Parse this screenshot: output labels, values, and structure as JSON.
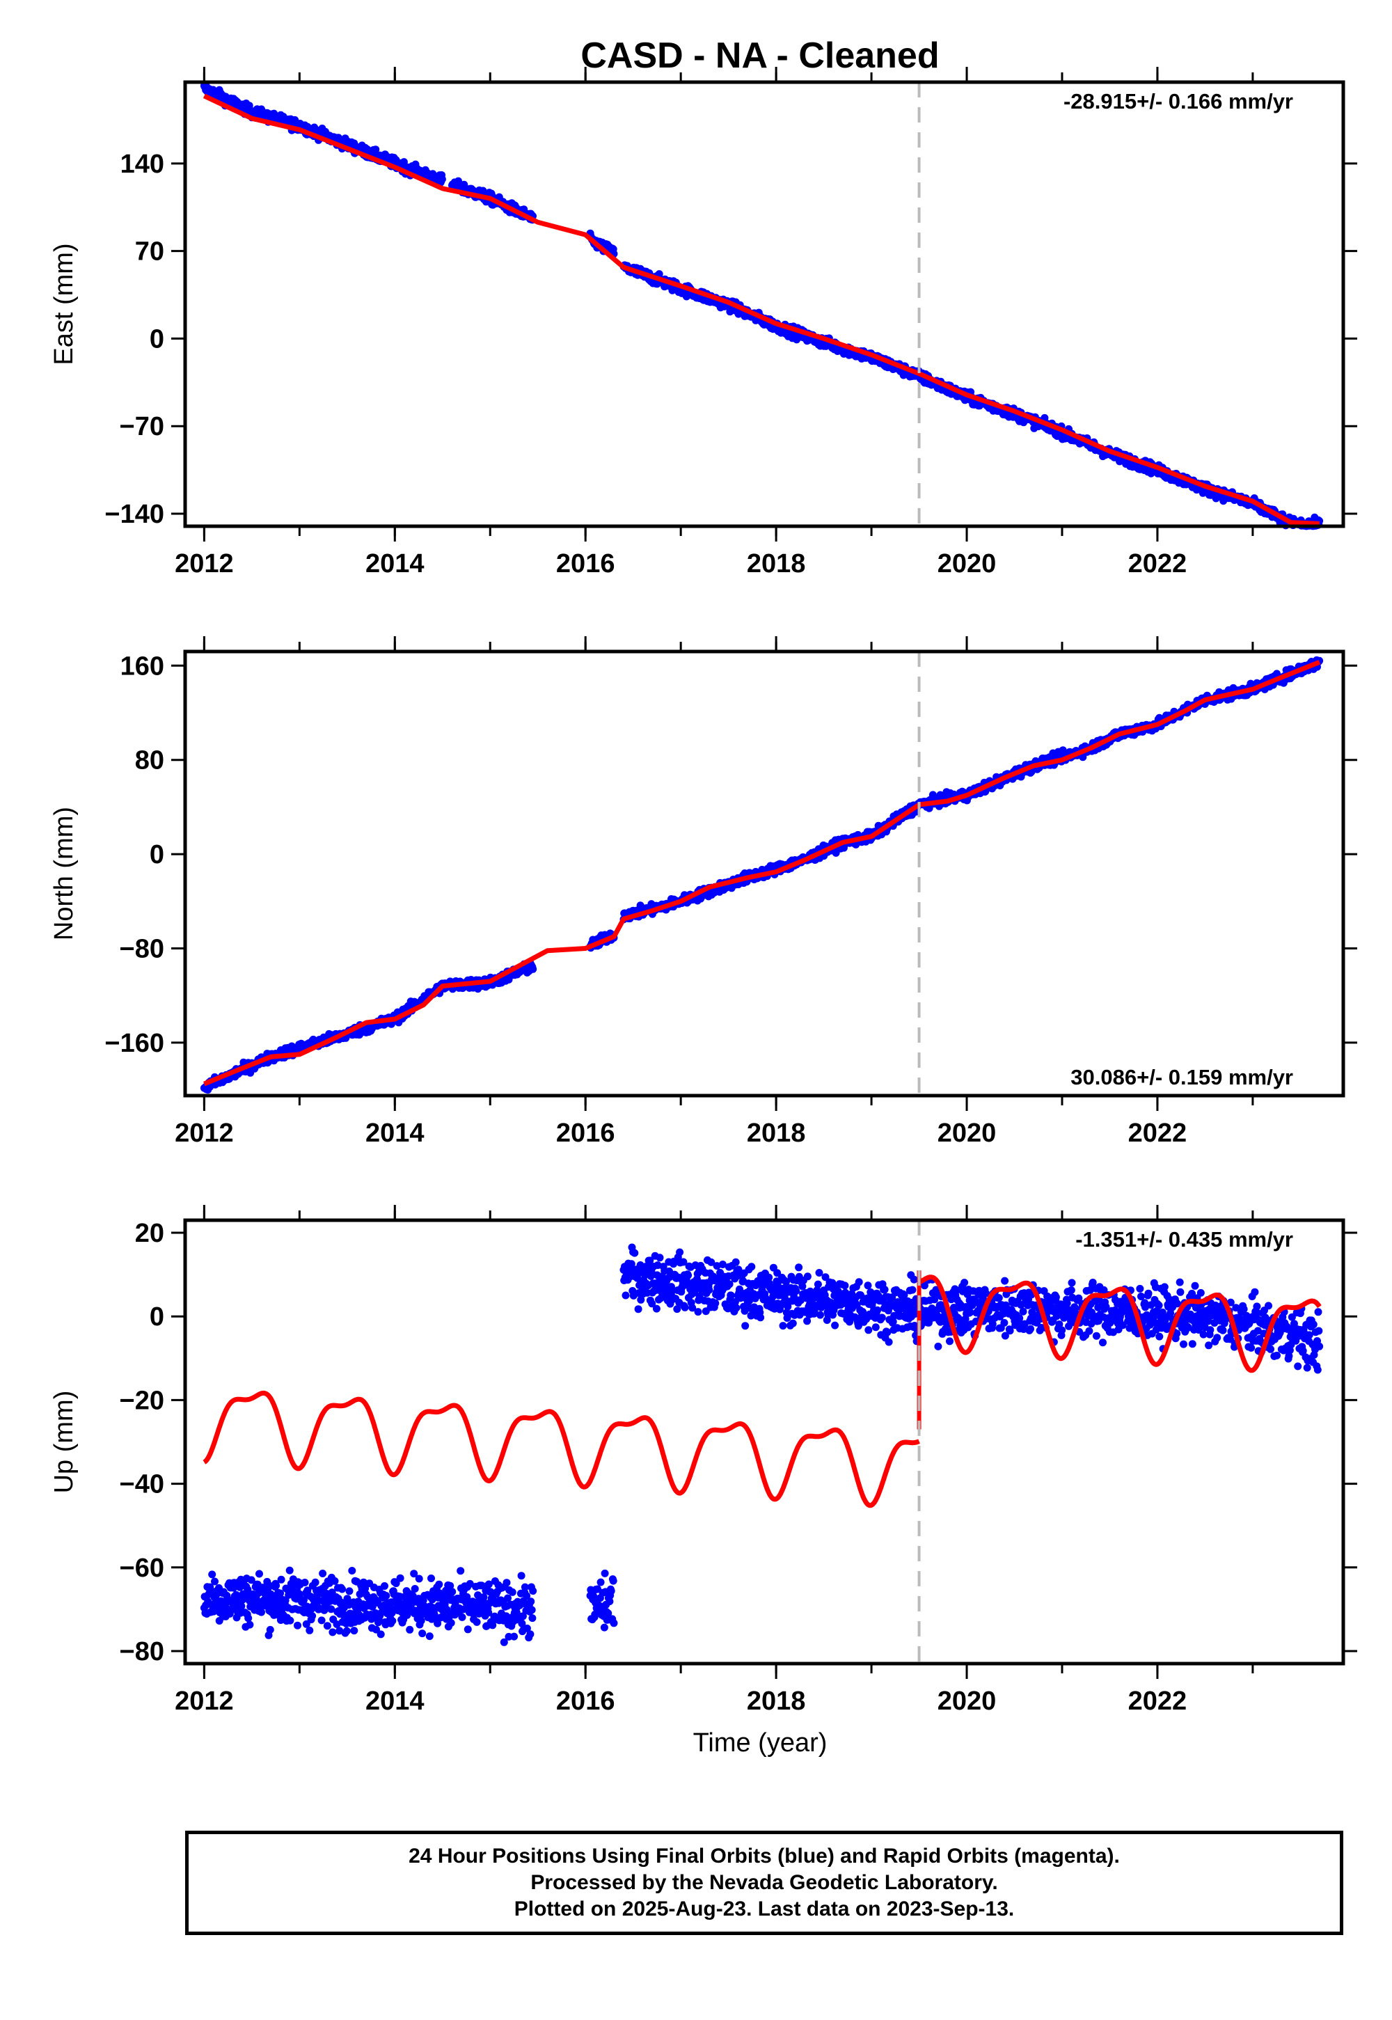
{
  "title": "CASD  - NA - Cleaned",
  "colors": {
    "data": "#0000ff",
    "model": "#ff0000",
    "event_line": "#bbbbbb",
    "axes": "#000000"
  },
  "chart_data": [
    {
      "type": "scatter",
      "panel": "east",
      "ylabel": "East (mm)",
      "xlabel": "",
      "xlim": [
        2011.8,
        2023.95
      ],
      "ylim": [
        -150,
        205
      ],
      "xticks": [
        2012,
        2014,
        2016,
        2018,
        2020,
        2022
      ],
      "yticks": [
        -140,
        -70,
        0,
        70,
        140
      ],
      "rate": "-28.915+/- 0.166 mm/yr",
      "rate_position": "top-right",
      "event_line_x": 2019.5,
      "model_segments": [
        {
          "x": [
            2012.0,
            2012.5,
            2013.0,
            2013.5,
            2014.0,
            2014.5,
            2015.0,
            2015.5,
            2016.0,
            2016.4,
            2017.0,
            2017.5,
            2018.0,
            2018.5,
            2019.0,
            2019.5,
            2020.0,
            2020.5,
            2021.0,
            2021.5,
            2022.0,
            2022.5,
            2023.0,
            2023.4,
            2023.7
          ],
          "y": [
            194,
            176,
            167,
            152,
            137,
            120,
            112,
            93,
            83,
            57,
            42,
            29,
            12,
            0,
            -13,
            -28,
            -45,
            -58,
            -73,
            -90,
            -103,
            -118,
            -130,
            -147,
            -148
          ]
        }
      ],
      "data_segments": [
        {
          "x": [
            2012.0,
            2012.5,
            2013.0,
            2013.5,
            2014.0,
            2014.5
          ],
          "y": [
            200,
            181,
            170,
            155,
            140,
            126
          ]
        },
        {
          "x": [
            2014.6,
            2015.0,
            2015.45
          ],
          "y": [
            123,
            112,
            96
          ]
        },
        {
          "x": [
            2016.05,
            2016.3
          ],
          "y": [
            79,
            68
          ]
        },
        {
          "x": [
            2016.4,
            2017.0,
            2017.5,
            2018.0,
            2018.5,
            2019.0,
            2019.5,
            2020.0,
            2020.5,
            2021.0,
            2021.5,
            2022.0,
            2022.5,
            2023.0,
            2023.4,
            2023.7
          ],
          "y": [
            57,
            40,
            27,
            10,
            -3,
            -15,
            -30,
            -47,
            -60,
            -75,
            -92,
            -105,
            -120,
            -132,
            -148,
            -149
          ]
        }
      ],
      "noise": 3
    },
    {
      "type": "scatter",
      "panel": "north",
      "ylabel": "North (mm)",
      "xlabel": "",
      "xlim": [
        2011.8,
        2023.95
      ],
      "ylim": [
        -205,
        172
      ],
      "xticks": [
        2012,
        2014,
        2016,
        2018,
        2020,
        2022
      ],
      "yticks": [
        -160,
        -80,
        0,
        80,
        160
      ],
      "rate": "30.086+/- 0.159 mm/yr",
      "rate_position": "bottom-right",
      "event_line_x": 2019.5,
      "model_segments": [
        {
          "x": [
            2012.0,
            2012.3,
            2012.7,
            2013.0,
            2013.4,
            2013.7,
            2014.0,
            2014.3,
            2014.5,
            2015.0,
            2015.3,
            2015.6,
            2016.0,
            2016.3,
            2016.4,
            2016.7,
            2017.0,
            2017.3,
            2017.7,
            2018.0,
            2018.3,
            2018.7,
            2019.0,
            2019.5,
            2019.8,
            2020.0,
            2020.4,
            2020.7,
            2021.0,
            2021.3,
            2021.6,
            2022.0,
            2022.3,
            2022.5,
            2023.0,
            2023.3,
            2023.7
          ],
          "y": [
            -195,
            -185,
            -172,
            -170,
            -155,
            -143,
            -140,
            -128,
            -112,
            -108,
            -95,
            -82,
            -80,
            -70,
            -55,
            -48,
            -40,
            -28,
            -20,
            -15,
            -5,
            10,
            15,
            42,
            45,
            50,
            65,
            75,
            80,
            90,
            102,
            110,
            122,
            131,
            140,
            150,
            163
          ]
        }
      ],
      "data_segments": [
        {
          "x": [
            2012.0,
            2012.7,
            2013.4,
            2014.0,
            2014.5,
            2015.0,
            2015.45
          ],
          "y": [
            -198,
            -172,
            -155,
            -140,
            -112,
            -109,
            -95
          ]
        },
        {
          "x": [
            2016.05,
            2016.3
          ],
          "y": [
            -78,
            -68
          ]
        },
        {
          "x": [
            2016.4,
            2016.7,
            2017.0,
            2017.7,
            2018.3,
            2018.7,
            2019.0,
            2019.5,
            2020.0,
            2020.7,
            2021.3,
            2021.6,
            2022.0,
            2022.5,
            2023.0,
            2023.7
          ],
          "y": [
            -52,
            -47,
            -40,
            -20,
            -5,
            10,
            15,
            42,
            50,
            75,
            90,
            102,
            110,
            131,
            140,
            163
          ]
        }
      ],
      "noise": 3
    },
    {
      "type": "scatter",
      "panel": "up",
      "ylabel": "Up (mm)",
      "xlabel": "Time (year)",
      "xlim": [
        2011.8,
        2023.95
      ],
      "ylim": [
        -83,
        23
      ],
      "xticks": [
        2012,
        2014,
        2016,
        2018,
        2020,
        2022
      ],
      "yticks": [
        -80,
        -60,
        -40,
        -20,
        0,
        20
      ],
      "rate": "-1.351+/- 0.435 mm/yr",
      "rate_position": "top-right",
      "event_line_x": 2019.5,
      "model_segments": [
        {
          "x": [
            2012.0,
            2019.5
          ],
          "base": [
            -24,
            -35
          ],
          "amplitude": 8,
          "period": 1.0,
          "phase": 0.25
        },
        {
          "x": [
            2019.5,
            2023.7
          ],
          "base": [
            3,
            -3
          ],
          "amplitude": 8,
          "period": 1.0,
          "phase": 0.25
        }
      ],
      "model_jump": {
        "x": 2019.5,
        "y": [
          -27,
          11
        ]
      },
      "data_segments": [
        {
          "x": [
            2012.0,
            2015.45
          ],
          "y": [
            -67,
            -70
          ]
        },
        {
          "x": [
            2016.05,
            2016.3
          ],
          "y": [
            -70,
            -68
          ]
        },
        {
          "x": [
            2016.4,
            2017.0,
            2018.0,
            2019.0,
            2019.5,
            2020.5,
            2021.5,
            2022.5,
            2023.7
          ],
          "y": [
            10,
            8,
            5,
            3,
            1,
            2,
            1,
            0,
            -6
          ]
        }
      ],
      "noise": 4.5
    }
  ],
  "footer": {
    "line1": "24 Hour Positions Using Final Orbits (blue) and Rapid Orbits (magenta).",
    "line2": "Processed by the Nevada Geodetic Laboratory.",
    "line3": "Plotted on 2025-Aug-23. Last data on 2023-Sep-13."
  }
}
